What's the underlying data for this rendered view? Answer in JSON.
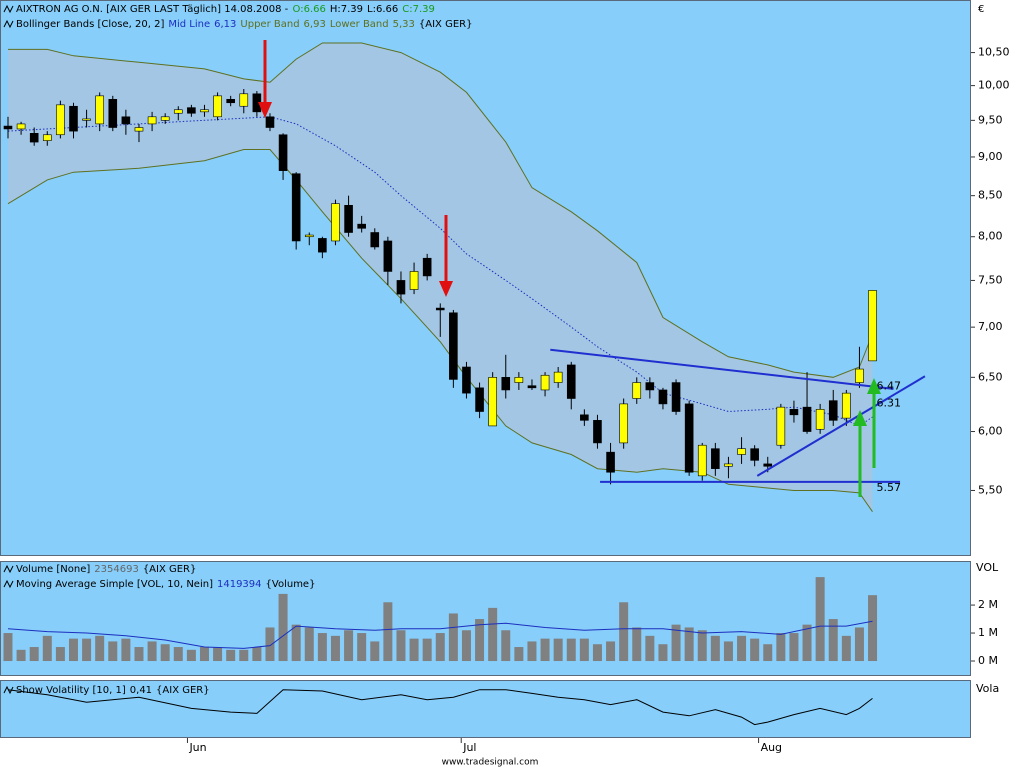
{
  "header": {
    "instrument": "AIXTRON AG O.N. [AIX GER LAST Täglich] 14.08.2008 -",
    "ohlc": [
      "O:6.66",
      "H:7.39",
      "L:6.66",
      "C:7.39"
    ]
  },
  "currency": "€",
  "footer": "www.tradesignal.com",
  "chart_data": [
    {
      "type": "candlestick",
      "indicator": "Bollinger Bands [Close, 20, 2]",
      "indicator_source": "{AIX GER}",
      "open": [
        9.42,
        9.38,
        9.32,
        9.22,
        9.3,
        9.7,
        9.5,
        9.45,
        9.8,
        9.55,
        9.35,
        9.45,
        9.5,
        9.6,
        9.68,
        9.62,
        9.55,
        9.8,
        9.7,
        9.88,
        9.55,
        9.3,
        8.78,
        8.0,
        7.98,
        7.95,
        8.38,
        8.15,
        8.05,
        7.95,
        7.5,
        7.4,
        7.75,
        7.2,
        7.15,
        6.6,
        6.4,
        6.05,
        6.5,
        6.45,
        6.42,
        6.38,
        6.45,
        6.62,
        6.15,
        6.1,
        5.82,
        5.9,
        6.3,
        6.45,
        6.38,
        6.45,
        6.25,
        5.62,
        5.85,
        5.7,
        5.8,
        5.85,
        5.72,
        5.88,
        6.2,
        6.22,
        6.02,
        6.28,
        6.12,
        6.45,
        6.66
      ],
      "high": [
        9.55,
        9.48,
        9.4,
        9.35,
        9.78,
        9.75,
        9.65,
        9.9,
        9.85,
        9.65,
        9.45,
        9.62,
        9.6,
        9.7,
        9.72,
        9.72,
        9.9,
        9.85,
        9.95,
        9.92,
        9.6,
        9.32,
        8.8,
        8.05,
        8.0,
        8.45,
        8.5,
        8.25,
        8.1,
        8.0,
        7.6,
        7.7,
        7.8,
        7.25,
        7.18,
        6.65,
        6.45,
        6.55,
        6.72,
        6.55,
        6.48,
        6.55,
        6.6,
        6.65,
        6.2,
        6.15,
        5.9,
        6.3,
        6.5,
        6.5,
        6.4,
        6.48,
        6.28,
        5.9,
        5.9,
        5.78,
        5.95,
        5.88,
        5.78,
        6.25,
        6.28,
        6.55,
        6.25,
        6.38,
        6.38,
        6.8,
        7.39
      ],
      "low": [
        9.25,
        9.3,
        9.15,
        9.15,
        9.25,
        9.25,
        9.4,
        9.35,
        9.35,
        9.3,
        9.2,
        9.35,
        9.45,
        9.5,
        9.55,
        9.55,
        9.5,
        9.7,
        9.6,
        9.55,
        9.35,
        8.7,
        7.85,
        7.9,
        7.75,
        7.9,
        8.0,
        8.05,
        7.85,
        7.45,
        7.25,
        7.35,
        7.5,
        6.9,
        6.4,
        6.3,
        6.12,
        6.05,
        6.3,
        6.38,
        6.38,
        6.32,
        6.4,
        6.2,
        6.05,
        5.85,
        5.55,
        5.85,
        6.25,
        6.3,
        6.2,
        6.15,
        5.62,
        5.58,
        5.62,
        5.6,
        5.72,
        5.7,
        5.65,
        5.85,
        6.08,
        5.98,
        5.98,
        6.05,
        6.05,
        6.4,
        6.66
      ],
      "close": [
        9.38,
        9.45,
        9.2,
        9.3,
        9.72,
        9.35,
        9.52,
        9.85,
        9.4,
        9.45,
        9.4,
        9.55,
        9.55,
        9.65,
        9.6,
        9.65,
        9.85,
        9.75,
        9.88,
        9.62,
        9.4,
        8.82,
        7.95,
        8.02,
        7.82,
        8.4,
        8.05,
        8.1,
        7.88,
        7.6,
        7.35,
        7.6,
        7.55,
        7.18,
        6.48,
        6.35,
        6.18,
        6.5,
        6.38,
        6.5,
        6.4,
        6.52,
        6.55,
        6.3,
        6.1,
        5.9,
        5.65,
        6.25,
        6.45,
        6.38,
        6.25,
        6.18,
        5.65,
        5.88,
        5.68,
        5.72,
        5.85,
        5.75,
        5.7,
        6.22,
        6.15,
        6.0,
        6.2,
        6.1,
        6.35,
        6.58,
        7.39
      ],
      "up_color": "#ffff00",
      "down_color": "#000000",
      "xlim": [
        -0.61,
        73.44
      ],
      "xticks": [
        {
          "value": 13.7,
          "label": "Jun"
        },
        {
          "value": 34.6,
          "label": "Jul"
        },
        {
          "value": 57.3,
          "label": "Aug"
        }
      ],
      "log_scale": true,
      "ylim": [
        5.0,
        11.05
      ],
      "yticks": [
        {
          "value": 5.5,
          "label": "5,50"
        },
        {
          "value": 6.0,
          "label": "6,00"
        },
        {
          "value": 6.5,
          "label": "6,50"
        },
        {
          "value": 7.0,
          "label": "7,00"
        },
        {
          "value": 7.5,
          "label": "7,50"
        },
        {
          "value": 8.0,
          "label": "8,00"
        },
        {
          "value": 8.5,
          "label": "8,50"
        },
        {
          "value": 9.0,
          "label": "9,00"
        },
        {
          "value": 9.5,
          "label": "9,50"
        },
        {
          "value": 10.0,
          "label": "10,00"
        },
        {
          "value": 10.5,
          "label": "10,50"
        }
      ],
      "band_fill": "#a3c6e4",
      "series": [
        {
          "name": "Mid Line",
          "color": "#1c2fbf",
          "style": "dotted",
          "value_label": "6,13",
          "x": [
            0,
            5,
            10,
            15,
            20,
            22,
            25,
            28,
            30,
            33,
            35,
            38,
            40,
            43,
            45,
            48,
            50,
            53,
            55,
            58,
            60,
            63,
            65,
            66
          ],
          "values": [
            9.35,
            9.4,
            9.45,
            9.5,
            9.55,
            9.45,
            9.15,
            8.8,
            8.5,
            8.1,
            7.8,
            7.5,
            7.3,
            7.0,
            6.8,
            6.55,
            6.35,
            6.25,
            6.18,
            6.2,
            6.22,
            6.15,
            6.05,
            6.13
          ]
        },
        {
          "name": "Upper Band",
          "color": "#5e7020",
          "style": "solid",
          "value_label": "6,93",
          "x": [
            0,
            3,
            5,
            10,
            15,
            18,
            20,
            22,
            24,
            27,
            30,
            33,
            35,
            38,
            40,
            43,
            45,
            48,
            50,
            53,
            55,
            58,
            60,
            63,
            65,
            66
          ],
          "values": [
            10.55,
            10.55,
            10.45,
            10.35,
            10.25,
            10.1,
            10.05,
            10.4,
            10.65,
            10.65,
            10.5,
            10.2,
            9.9,
            9.2,
            8.6,
            8.3,
            8.07,
            7.7,
            7.1,
            6.85,
            6.7,
            6.62,
            6.55,
            6.5,
            6.6,
            6.93
          ]
        },
        {
          "name": "Lower Band",
          "color": "#5e7020",
          "style": "solid",
          "value_label": "5,33",
          "x": [
            0,
            3,
            5,
            10,
            15,
            18,
            20,
            22,
            24,
            27,
            30,
            33,
            35,
            38,
            40,
            43,
            45,
            48,
            50,
            53,
            55,
            58,
            60,
            63,
            65,
            66
          ],
          "values": [
            8.4,
            8.7,
            8.8,
            8.85,
            8.95,
            9.1,
            9.1,
            8.7,
            8.3,
            7.75,
            7.3,
            6.85,
            6.5,
            6.05,
            5.9,
            5.8,
            5.68,
            5.65,
            5.68,
            5.65,
            5.55,
            5.52,
            5.5,
            5.5,
            5.48,
            5.33
          ]
        }
      ],
      "trendlines": {
        "color": "#1f2fd0",
        "lines": [
          {
            "x": [
              41.4,
              67.6
            ],
            "values": [
              6.77,
              6.39
            ]
          },
          {
            "x": [
              45.2,
              68.1
            ],
            "values": [
              5.57,
              5.57
            ]
          },
          {
            "x": [
              57.2,
              70.0
            ],
            "values": [
              5.62,
              6.51
            ]
          }
        ]
      },
      "annotations": [
        {
          "x": 66.3,
          "value": 6.47
        },
        {
          "x": 66.3,
          "value": 6.31
        },
        {
          "x": 66.3,
          "value": 5.57
        }
      ],
      "annotation_color": "#1c2fbf"
    },
    {
      "type": "bar",
      "axis_label": "VOL",
      "xlim": [
        -0.61,
        73.44
      ],
      "ylim": [
        -0.5,
        3.54
      ],
      "yticks": [
        {
          "value": 0,
          "label": "0 M"
        },
        {
          "value": 1,
          "label": "1 M"
        },
        {
          "value": 2,
          "label": "2 M"
        }
      ],
      "series": [
        {
          "name": "Volume [None]",
          "color": "#808080",
          "value_label": "2354693",
          "source": "{AIX GER}",
          "values": [
            1.0,
            0.4,
            0.5,
            0.9,
            0.5,
            0.8,
            0.8,
            0.9,
            0.7,
            0.8,
            0.5,
            0.7,
            0.6,
            0.5,
            0.4,
            0.5,
            0.5,
            0.4,
            0.4,
            0.5,
            1.2,
            2.4,
            1.3,
            1.2,
            1.0,
            0.9,
            1.1,
            1.0,
            0.7,
            2.1,
            1.1,
            0.8,
            0.8,
            1.0,
            1.7,
            1.1,
            1.5,
            1.9,
            1.1,
            0.5,
            0.7,
            0.8,
            0.8,
            0.8,
            0.8,
            0.6,
            0.7,
            2.1,
            1.2,
            0.9,
            0.6,
            1.3,
            1.2,
            1.1,
            0.9,
            0.7,
            0.9,
            0.8,
            0.6,
            1.0,
            1.0,
            1.3,
            3.0,
            1.5,
            0.9,
            1.2,
            2.354693
          ]
        },
        {
          "name": "Moving Average Simple [VOL, 10, Nein]",
          "type": "line",
          "color": "#1c2fbf",
          "value_label": "1419394",
          "source": "{Volume}",
          "x": [
            0,
            3,
            6,
            9,
            12,
            15,
            18,
            20,
            22,
            25,
            28,
            30,
            33,
            36,
            38,
            41,
            44,
            47,
            50,
            53,
            56,
            59,
            62,
            64,
            66
          ],
          "values": [
            1.15,
            1.05,
            1.0,
            0.9,
            0.75,
            0.5,
            0.45,
            0.55,
            1.25,
            1.15,
            1.1,
            1.15,
            1.15,
            1.3,
            1.35,
            1.2,
            1.1,
            1.15,
            1.15,
            1.0,
            1.05,
            0.95,
            1.25,
            1.25,
            1.419394
          ]
        }
      ]
    },
    {
      "type": "line",
      "axis_label": "Vola",
      "xlim": [
        -0.61,
        73.44
      ],
      "ylim": [
        0.1,
        0.55
      ],
      "series": [
        {
          "name": "Show Volatility [10, 1]",
          "color": "#000000",
          "value_label": "0,41",
          "source": "{AIX GER}",
          "x": [
            0,
            3,
            6,
            10,
            14,
            17,
            19,
            21,
            24,
            27,
            30,
            32,
            34,
            36,
            38,
            40,
            42,
            44,
            46,
            48,
            50,
            52,
            54,
            56,
            57,
            58,
            60,
            62,
            64,
            65,
            66
          ],
          "values": [
            0.48,
            0.44,
            0.38,
            0.42,
            0.33,
            0.3,
            0.29,
            0.48,
            0.47,
            0.4,
            0.44,
            0.4,
            0.42,
            0.48,
            0.48,
            0.45,
            0.42,
            0.4,
            0.36,
            0.4,
            0.3,
            0.27,
            0.32,
            0.26,
            0.2,
            0.22,
            0.28,
            0.33,
            0.28,
            0.33,
            0.41
          ]
        }
      ]
    }
  ]
}
